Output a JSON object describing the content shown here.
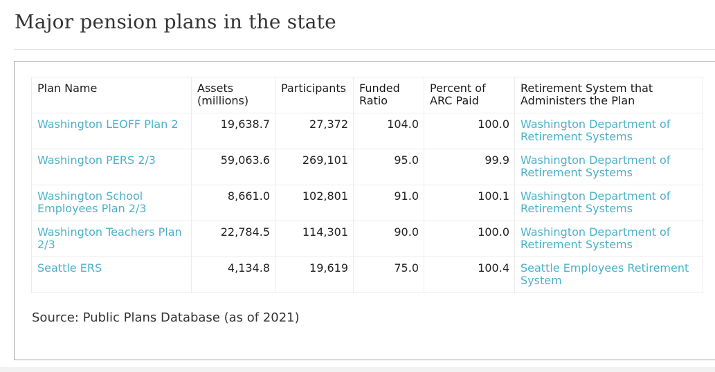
{
  "title": "Major pension plans in the state",
  "table": {
    "headers": [
      "Plan Name",
      "Assets (millions)",
      "Participants",
      "Funded Ratio",
      "Percent of ARC Paid",
      "Retirement System that Administers the Plan"
    ],
    "rows": [
      {
        "plan": "Washington LEOFF Plan 2",
        "assets": "19,638.7",
        "participants": "27,372",
        "funded": "104.0",
        "arc": "100.0",
        "system": "Washington Department of Retirement Systems"
      },
      {
        "plan": "Washington PERS 2/3",
        "assets": "59,063.6",
        "participants": "269,101",
        "funded": "95.0",
        "arc": "99.9",
        "system": "Washington Department of Retirement Systems"
      },
      {
        "plan": "Washington School Employees Plan 2/3",
        "assets": "8,661.0",
        "participants": "102,801",
        "funded": "91.0",
        "arc": "100.1",
        "system": "Washington Department of Retirement Systems"
      },
      {
        "plan": "Washington Teachers Plan 2/3",
        "assets": "22,784.5",
        "participants": "114,301",
        "funded": "90.0",
        "arc": "100.0",
        "system": "Washington Department of Retirement Systems"
      },
      {
        "plan": "Seattle ERS",
        "assets": "4,134.8",
        "participants": "19,619",
        "funded": "75.0",
        "arc": "100.4",
        "system": "Seattle Employees Retirement System"
      }
    ]
  },
  "source": "Source: Public Plans Database (as of 2021)",
  "colors": {
    "link": "#4cb0c9",
    "text": "#222222",
    "border": "#ececec",
    "frame": "#a9a9a9"
  }
}
